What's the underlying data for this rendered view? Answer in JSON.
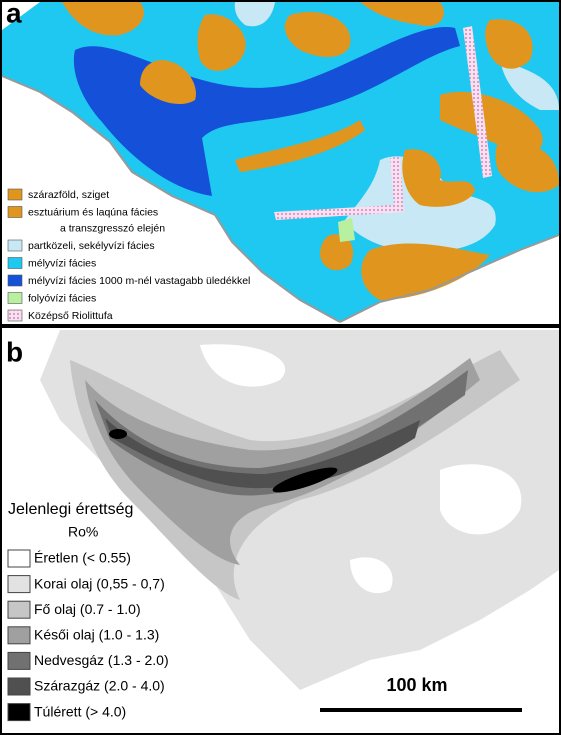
{
  "panel_a": {
    "label": "a",
    "legend": [
      {
        "lines": [
          "szárazföld, sziget"
        ],
        "color": "#e0961e"
      },
      {
        "lines": [
          "esztuárium és laqúna fácies",
          "a transzgresszó elején"
        ],
        "color": "#e0961e"
      },
      {
        "lines": [
          "partközeli, sekélyvízi fácies"
        ],
        "color": "#c8e8f5"
      },
      {
        "lines": [
          "mélyvízi fácies"
        ],
        "color": "#1ec8f0"
      },
      {
        "lines": [
          "mélyvízi fácies 1000 m-nél vastagabb üledékkel"
        ],
        "color": "#1450d8"
      },
      {
        "lines": [
          "folyóvízi fácies"
        ],
        "color": "#b8f0a0"
      },
      {
        "lines": [
          "Középső Riolittufa"
        ],
        "color": "#f8e0f0"
      }
    ]
  },
  "panel_b": {
    "label": "b",
    "legend_title": "Jelenlegi érettség",
    "legend_subtitle": "Ro%",
    "legend": [
      {
        "label": "Éretlen (< 0.55)",
        "color": "#ffffff"
      },
      {
        "label": "Korai olaj (0,55 - 0,7)",
        "color": "#e2e2e2"
      },
      {
        "label": "Fő olaj (0.7 - 1.0)",
        "color": "#c6c6c6"
      },
      {
        "label": "Késői olaj (1.0 - 1.3)",
        "color": "#a0a0a0"
      },
      {
        "label": "Nedvesgáz (1.3 - 2.0)",
        "color": "#717171"
      },
      {
        "label": "Szárazgáz (2.0 - 4.0)",
        "color": "#505050"
      },
      {
        "label": "Túlérett (> 4.0)",
        "color": "#000000"
      }
    ],
    "scale_bar": "100 km"
  }
}
